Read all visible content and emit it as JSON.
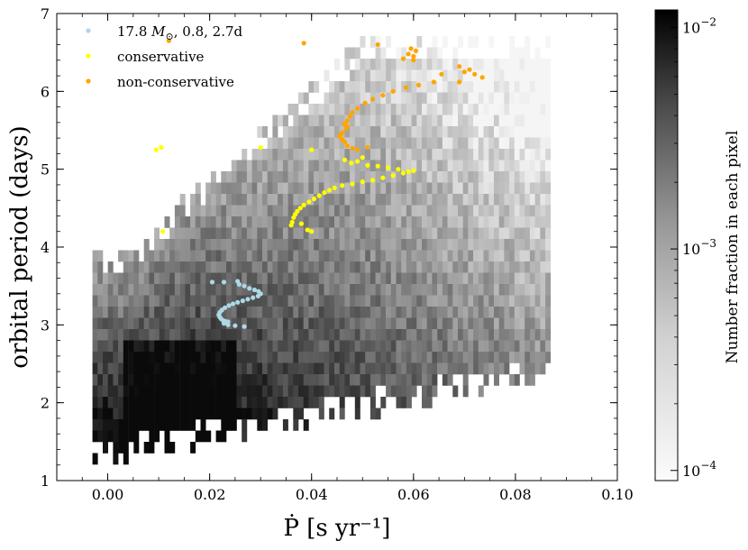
{
  "chart_data": {
    "type": "scatter",
    "xlabel": "Ṗ [s yr⁻¹]",
    "ylabel": "orbital period (days)",
    "xlim": [
      -0.01,
      0.1
    ],
    "ylim": [
      1,
      7
    ],
    "x_ticks": [
      "0.00",
      "0.02",
      "0.04",
      "0.06",
      "0.08",
      "0.10"
    ],
    "x_tick_values": [
      0.0,
      0.02,
      0.04,
      0.06,
      0.08,
      0.1
    ],
    "y_ticks": [
      "1",
      "2",
      "3",
      "4",
      "5",
      "6",
      "7"
    ],
    "y_tick_values": [
      1,
      2,
      3,
      4,
      5,
      6,
      7
    ],
    "legend_position": "top-left",
    "colorbar": {
      "label": "Number fraction in each pixel",
      "scale": "log",
      "range": [
        9e-05,
        0.012
      ],
      "ticks": [
        {
          "value": 0.01,
          "base": "10",
          "exp": "−2"
        },
        {
          "value": 0.001,
          "base": "10",
          "exp": "−3"
        },
        {
          "value": 0.0001,
          "base": "10",
          "exp": "−4"
        }
      ]
    },
    "background": {
      "type": "heatmap",
      "cmap": "Greys",
      "description_only": true
    },
    "series": [
      {
        "name": "17.8 M☉, 0.8, 2.7d",
        "legend_parts": [
          "17.8 ",
          "M",
          "⊙",
          ", 0.8, 2.7d"
        ],
        "color": "#add8e6",
        "points": [
          [
            0.0205,
            3.55
          ],
          [
            0.0228,
            3.55
          ],
          [
            0.0255,
            3.56
          ],
          [
            0.0258,
            3.52
          ],
          [
            0.0268,
            3.5
          ],
          [
            0.0278,
            3.47
          ],
          [
            0.0288,
            3.45
          ],
          [
            0.0296,
            3.43
          ],
          [
            0.03,
            3.4
          ],
          [
            0.0295,
            3.37
          ],
          [
            0.0285,
            3.35
          ],
          [
            0.0275,
            3.33
          ],
          [
            0.0265,
            3.31
          ],
          [
            0.0255,
            3.29
          ],
          [
            0.0246,
            3.27
          ],
          [
            0.0238,
            3.25
          ],
          [
            0.023,
            3.22
          ],
          [
            0.0224,
            3.19
          ],
          [
            0.022,
            3.16
          ],
          [
            0.0218,
            3.13
          ],
          [
            0.022,
            3.1
          ],
          [
            0.0222,
            3.08
          ],
          [
            0.0226,
            3.06
          ],
          [
            0.023,
            3.05
          ],
          [
            0.0236,
            3.04
          ],
          [
            0.0228,
            3.02
          ],
          [
            0.0236,
            3.0
          ],
          [
            0.025,
            2.99
          ],
          [
            0.0268,
            2.98
          ]
        ]
      },
      {
        "name": "conservative",
        "color": "#ffff00",
        "points": [
          [
            0.0095,
            5.25
          ],
          [
            0.0105,
            5.28
          ],
          [
            0.0108,
            4.2
          ],
          [
            0.03,
            5.28
          ],
          [
            0.04,
            5.25
          ],
          [
            0.036,
            4.28
          ],
          [
            0.0362,
            4.32
          ],
          [
            0.0365,
            4.38
          ],
          [
            0.0368,
            4.42
          ],
          [
            0.0372,
            4.46
          ],
          [
            0.0378,
            4.5
          ],
          [
            0.0385,
            4.54
          ],
          [
            0.0395,
            4.58
          ],
          [
            0.0405,
            4.62
          ],
          [
            0.0415,
            4.66
          ],
          [
            0.0425,
            4.7
          ],
          [
            0.0435,
            4.73
          ],
          [
            0.0445,
            4.76
          ],
          [
            0.046,
            4.79
          ],
          [
            0.048,
            4.81
          ],
          [
            0.05,
            4.84
          ],
          [
            0.052,
            4.86
          ],
          [
            0.054,
            4.89
          ],
          [
            0.056,
            4.92
          ],
          [
            0.058,
            4.95
          ],
          [
            0.06,
            4.98
          ],
          [
            0.038,
            4.3
          ],
          [
            0.0392,
            4.22
          ],
          [
            0.04,
            4.2
          ],
          [
            0.0465,
            5.12
          ],
          [
            0.0478,
            5.08
          ],
          [
            0.049,
            5.1
          ],
          [
            0.05,
            5.15
          ],
          [
            0.051,
            5.05
          ],
          [
            0.053,
            5.04
          ],
          [
            0.055,
            5.02
          ],
          [
            0.057,
            5.0
          ],
          [
            0.059,
            4.97
          ]
        ]
      },
      {
        "name": "non-conservative",
        "color": "#ffa500",
        "points": [
          [
            0.012,
            6.65
          ],
          [
            0.0385,
            6.62
          ],
          [
            0.053,
            6.6
          ],
          [
            0.0595,
            6.55
          ],
          [
            0.0605,
            6.52
          ],
          [
            0.059,
            6.48
          ],
          [
            0.06,
            6.45
          ],
          [
            0.058,
            6.42
          ],
          [
            0.06,
            6.4
          ],
          [
            0.069,
            6.32
          ],
          [
            0.071,
            6.28
          ],
          [
            0.07,
            6.25
          ],
          [
            0.072,
            6.22
          ],
          [
            0.0735,
            6.18
          ],
          [
            0.0655,
            6.22
          ],
          [
            0.069,
            6.12
          ],
          [
            0.064,
            6.12
          ],
          [
            0.061,
            6.08
          ],
          [
            0.0585,
            6.05
          ],
          [
            0.056,
            6.0
          ],
          [
            0.054,
            5.95
          ],
          [
            0.052,
            5.9
          ],
          [
            0.0505,
            5.85
          ],
          [
            0.049,
            5.78
          ],
          [
            0.048,
            5.73
          ],
          [
            0.0475,
            5.68
          ],
          [
            0.047,
            5.62
          ],
          [
            0.0465,
            5.58
          ],
          [
            0.047,
            5.55
          ],
          [
            0.0468,
            5.52
          ],
          [
            0.046,
            5.47
          ],
          [
            0.0458,
            5.45
          ],
          [
            0.0455,
            5.42
          ],
          [
            0.046,
            5.38
          ],
          [
            0.0465,
            5.35
          ],
          [
            0.047,
            5.3
          ],
          [
            0.048,
            5.27
          ],
          [
            0.049,
            5.25
          ],
          [
            0.051,
            5.28
          ]
        ]
      }
    ]
  }
}
